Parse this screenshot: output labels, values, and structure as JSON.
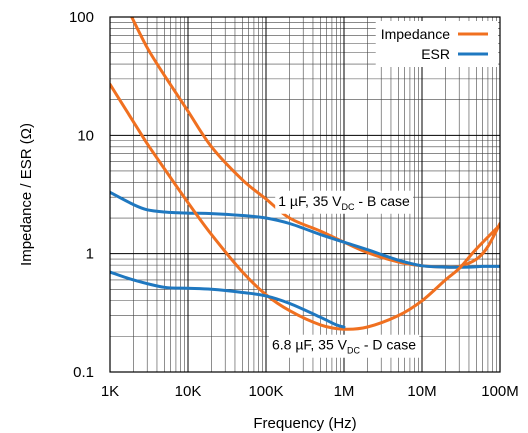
{
  "chart_data": {
    "type": "line",
    "x_scale": "log",
    "y_scale": "log",
    "xlim": [
      1000,
      100000000
    ],
    "ylim": [
      0.1,
      100
    ],
    "xlabel": "Frequency (Hz)",
    "ylabel": "Impedance / ESR (Ω)",
    "x_ticks": [
      {
        "value": 1000,
        "label": "1K"
      },
      {
        "value": 10000,
        "label": "10K"
      },
      {
        "value": 100000,
        "label": "100K"
      },
      {
        "value": 1000000,
        "label": "1M"
      },
      {
        "value": 10000000,
        "label": "10M"
      },
      {
        "value": 100000000,
        "label": "100M"
      }
    ],
    "y_ticks": [
      {
        "value": 0.1,
        "label": "0.1"
      },
      {
        "value": 1,
        "label": "1"
      },
      {
        "value": 10,
        "label": "10"
      },
      {
        "value": 100,
        "label": "100"
      }
    ],
    "grid": true,
    "legend_position": "top-right",
    "legend": [
      {
        "name": "Impedance",
        "color": "#f07020"
      },
      {
        "name": "ESR",
        "color": "#1f78c0"
      }
    ],
    "series": [
      {
        "name": "Impedance",
        "group": "1 µF, 35 VDC - B case",
        "color": "#f07020",
        "points": [
          [
            1900,
            100
          ],
          [
            3000,
            55
          ],
          [
            5000,
            32
          ],
          [
            10000,
            16
          ],
          [
            20000,
            8
          ],
          [
            50000,
            4.2
          ],
          [
            100000,
            2.9
          ],
          [
            200000,
            2.0
          ],
          [
            500000,
            1.55
          ],
          [
            1000000,
            1.25
          ],
          [
            2000000,
            1.02
          ],
          [
            5000000,
            0.85
          ],
          [
            10000000,
            0.79
          ],
          [
            20000000,
            0.77
          ],
          [
            30000000,
            0.78
          ],
          [
            50000000,
            0.9
          ],
          [
            70000000,
            1.15
          ],
          [
            100000000,
            1.8
          ]
        ]
      },
      {
        "name": "ESR",
        "group": "1 µF, 35 VDC - B case",
        "color": "#1f78c0",
        "points": [
          [
            1000,
            3.3
          ],
          [
            2000,
            2.6
          ],
          [
            3000,
            2.35
          ],
          [
            5000,
            2.25
          ],
          [
            10000,
            2.2
          ],
          [
            20000,
            2.18
          ],
          [
            50000,
            2.1
          ],
          [
            100000,
            2.0
          ],
          [
            200000,
            1.8
          ],
          [
            500000,
            1.45
          ],
          [
            1000000,
            1.25
          ],
          [
            2000000,
            1.08
          ],
          [
            5000000,
            0.88
          ],
          [
            10000000,
            0.79
          ],
          [
            20000000,
            0.77
          ],
          [
            40000000,
            0.77
          ],
          [
            60000000,
            0.78
          ],
          [
            100000000,
            0.78
          ]
        ]
      },
      {
        "name": "Impedance",
        "group": "6.8 µF, 35 VDC - D case",
        "color": "#f07020",
        "points": [
          [
            1000,
            27
          ],
          [
            2000,
            13
          ],
          [
            3000,
            8.5
          ],
          [
            5000,
            5.2
          ],
          [
            10000,
            2.7
          ],
          [
            20000,
            1.45
          ],
          [
            50000,
            0.7
          ],
          [
            100000,
            0.45
          ],
          [
            200000,
            0.33
          ],
          [
            500000,
            0.25
          ],
          [
            1000000,
            0.23
          ],
          [
            2000000,
            0.24
          ],
          [
            5000000,
            0.3
          ],
          [
            10000000,
            0.4
          ],
          [
            20000000,
            0.6
          ],
          [
            30000000,
            0.75
          ],
          [
            50000000,
            1.1
          ],
          [
            100000000,
            1.75
          ]
        ]
      },
      {
        "name": "ESR",
        "group": "6.8 µF, 35 VDC - D case",
        "color": "#1f78c0",
        "points": [
          [
            1000,
            0.7
          ],
          [
            2000,
            0.6
          ],
          [
            5000,
            0.52
          ],
          [
            10000,
            0.51
          ],
          [
            20000,
            0.5
          ],
          [
            50000,
            0.47
          ],
          [
            100000,
            0.44
          ],
          [
            200000,
            0.38
          ],
          [
            500000,
            0.29
          ],
          [
            800000,
            0.25
          ],
          [
            1000000,
            0.24
          ]
        ]
      }
    ],
    "annotations": [
      {
        "id": "b-case",
        "main": "1 µF, 35 V",
        "sub": "DC",
        "tail": " - B case",
        "x": 1000000,
        "y": 2.8
      },
      {
        "id": "d-case",
        "main": "6.8 µF, 35 V",
        "sub": "DC",
        "tail": " - D case",
        "x": 1000000,
        "y": 0.17
      }
    ]
  }
}
